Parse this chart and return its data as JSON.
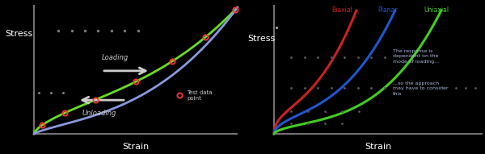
{
  "bg_color": "#000000",
  "left_panel": {
    "stress_label": "Stress",
    "strain_label": "Strain",
    "loading_label": "Loading",
    "unloading_label": "Unloading",
    "test_data_label": "Test data\npoint",
    "loading_color": "#66dd22",
    "unloading_color": "#8899dd",
    "test_point_color": "#ff3333",
    "annotation_color": "#cccccc",
    "dashed_color": "#777777",
    "axis_color": "#888888"
  },
  "right_panel": {
    "stress_label": "Stress",
    "strain_label": "Strain",
    "biaxial_label": "Biaxial",
    "planar_label": "Planar",
    "uniaxial_label": "Uniaxial",
    "biaxial_color": "#cc2222",
    "planar_color": "#2255cc",
    "uniaxial_color": "#44cc22",
    "note1": "The response is\ndependent on the\nmode of loading...",
    "note2": "...so the approach\nmay have to consider\nthis",
    "note_color": "#aabbdd",
    "dashed_color": "#666666",
    "axis_color": "#888888",
    "dot_color": "#555555"
  }
}
